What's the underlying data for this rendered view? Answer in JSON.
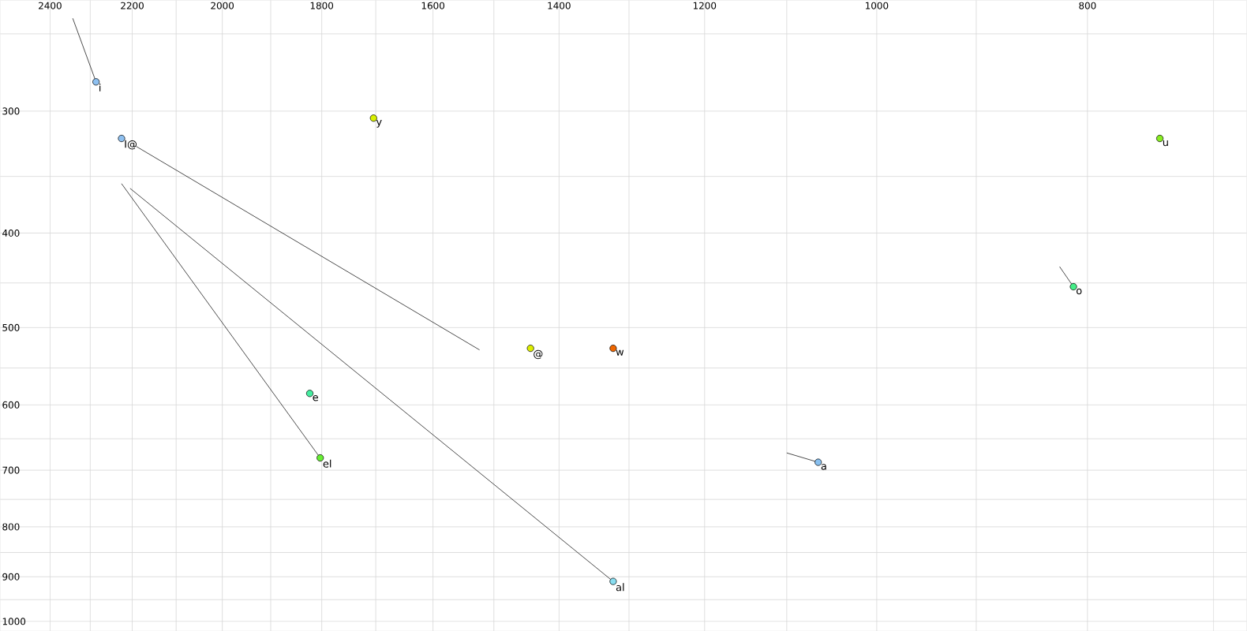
{
  "chart_data": {
    "type": "scatter",
    "log": "xy",
    "grid": true,
    "xlim": [
      2530,
      676
    ],
    "ylim": [
      1023,
      231
    ],
    "xticks": [
      2400,
      {
        "value": 2300,
        "label": null
      },
      2200,
      {
        "value": 2100,
        "label": null
      },
      2000,
      {
        "value": 1900,
        "label": null
      },
      1800,
      {
        "value": 1700,
        "label": null
      },
      1600,
      {
        "value": 1500,
        "label": null
      },
      1400,
      {
        "value": 1300,
        "label": null
      },
      1200,
      {
        "value": 1100,
        "label": null
      },
      1000,
      {
        "value": 900,
        "label": null
      },
      800,
      {
        "value": 700,
        "label": null
      }
    ],
    "yticks": [
      {
        "value": 250,
        "label": null
      },
      300,
      {
        "value": 350,
        "label": null
      },
      400,
      {
        "value": 450,
        "label": null
      },
      500,
      {
        "value": 550,
        "label": null
      },
      600,
      {
        "value": 650,
        "label": null
      },
      700,
      {
        "value": 750,
        "label": null
      },
      800,
      {
        "value": 850,
        "label": null
      },
      900,
      {
        "value": 950,
        "label": null
      },
      1000
    ],
    "series": [
      {
        "type": "line",
        "color": "#000000",
        "marker": "none",
        "x": [
          2343,
          2286
        ],
        "values": [
          241,
          280
        ]
      },
      {
        "type": "line",
        "color": "#000000",
        "marker": "none",
        "x": [
          2191,
          1523
        ],
        "values": [
          326,
          527
        ]
      },
      {
        "type": "line",
        "color": "#000000",
        "marker": "none",
        "x": [
          2225,
          1803
        ],
        "values": [
          356,
          680
        ]
      },
      {
        "type": "line",
        "color": "#000000",
        "marker": "none",
        "x": [
          2205,
          1322
        ],
        "values": [
          360,
          910
        ]
      },
      {
        "type": "line",
        "color": "#000000",
        "marker": "none",
        "x": [
          824,
          812
        ],
        "values": [
          433,
          454
        ]
      },
      {
        "type": "line",
        "color": "#000000",
        "marker": "none",
        "x": [
          1100,
          1064
        ],
        "values": [
          672,
          687
        ]
      },
      {
        "marker": "circle",
        "x": [
          2286,
          2225,
          1704,
          741,
          812,
          1823,
          1803,
          1443,
          1322,
          1322,
          1064
        ],
        "values": [
          280,
          320,
          305,
          320,
          454,
          584,
          680,
          525,
          525,
          910,
          687
        ],
        "colors": [
          "#8ec0f0",
          "#8ec0f0",
          "#d8f000",
          "#88ee22",
          "#44ee88",
          "#44eea0",
          "#66ee33",
          "#ddee00",
          "#ee6600",
          "#88ddf0",
          "#88c0f0"
        ]
      }
    ],
    "annotations": [
      {
        "text": "i",
        "x": 2286,
        "y": 280
      },
      {
        "text": "I@",
        "x": 2225,
        "y": 320
      },
      {
        "text": "y",
        "x": 1704,
        "y": 305
      },
      {
        "text": "u",
        "x": 741,
        "y": 320
      },
      {
        "text": "o",
        "x": 812,
        "y": 454
      },
      {
        "text": "e",
        "x": 1823,
        "y": 584
      },
      {
        "text": "el",
        "x": 1803,
        "y": 680
      },
      {
        "text": "@",
        "x": 1443,
        "y": 525
      },
      {
        "text": "w",
        "x": 1322,
        "y": 525
      },
      {
        "text": "al",
        "x": 1322,
        "y": 910
      },
      {
        "text": "a",
        "x": 1064,
        "y": 687
      }
    ]
  }
}
